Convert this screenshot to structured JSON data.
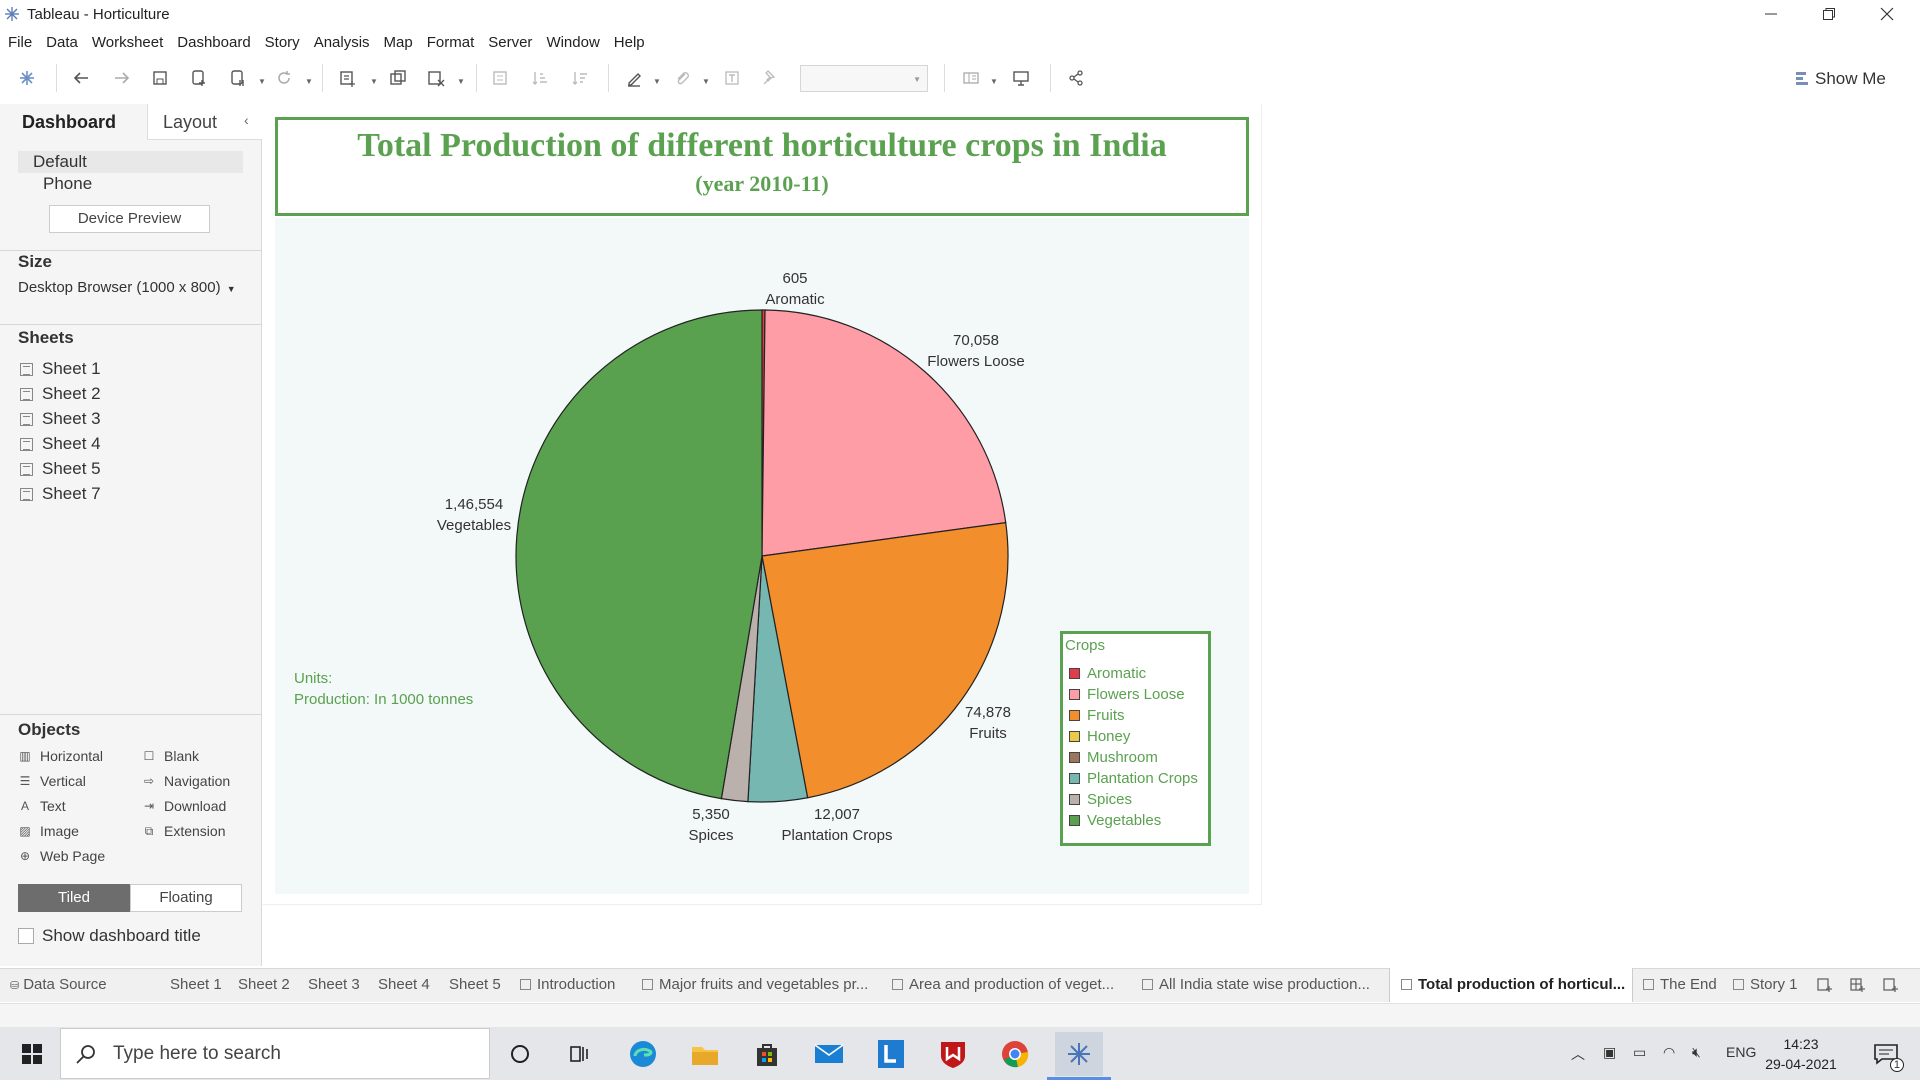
{
  "window": {
    "title": "Tableau - Horticulture"
  },
  "menu": [
    "File",
    "Data",
    "Worksheet",
    "Dashboard",
    "Story",
    "Analysis",
    "Map",
    "Format",
    "Server",
    "Window",
    "Help"
  ],
  "toolbar": {
    "show_me": "Show Me"
  },
  "left_panel": {
    "tabs": {
      "dashboard": "Dashboard",
      "layout": "Layout"
    },
    "devices": {
      "default": "Default",
      "phone": "Phone",
      "preview_button": "Device Preview"
    },
    "size": {
      "heading": "Size",
      "value": "Desktop Browser (1000 x 800)"
    },
    "sheets": {
      "heading": "Sheets",
      "items": [
        "Sheet 1",
        "Sheet 2",
        "Sheet 3",
        "Sheet 4",
        "Sheet 5",
        "Sheet 7"
      ]
    },
    "objects": {
      "heading": "Objects",
      "items": [
        "Horizontal",
        "Blank",
        "Vertical",
        "Navigation",
        "Text",
        "Download",
        "Image",
        "Extension",
        "Web Page"
      ]
    },
    "layout_mode": {
      "tiled": "Tiled",
      "floating": "Floating"
    },
    "show_title": "Show dashboard title"
  },
  "dashboard": {
    "title": "Total Production of different horticulture crops in India",
    "subtitle": "(year 2010-11)",
    "units_line1": "Units:",
    "units_line2": "Production: In 1000 tonnes",
    "legend_title": "Crops"
  },
  "chart_data": {
    "type": "pie",
    "title": "Total Production of different horticulture crops in India",
    "subtitle": "(year 2010-11)",
    "unit": "Production: In 1000 tonnes",
    "legend_title": "Crops",
    "legend_position": "right",
    "categories": [
      "Aromatic",
      "Flowers Loose",
      "Fruits",
      "Plantation Crops",
      "Spices",
      "Vegetables"
    ],
    "values": [
      605,
      70058,
      74878,
      12007,
      5350,
      146554
    ],
    "value_labels": [
      "605",
      "70,058",
      "74,878",
      "12,007",
      "5,350",
      "1,46,554"
    ],
    "colors": [
      "#e03c4a",
      "#ff9da7",
      "#f28e2b",
      "#76b7b2",
      "#bab0ac",
      "#59a14f"
    ],
    "legend": [
      {
        "name": "Aromatic",
        "color": "#e03c4a"
      },
      {
        "name": "Flowers Loose",
        "color": "#ff9da7"
      },
      {
        "name": "Fruits",
        "color": "#f28e2b"
      },
      {
        "name": "Honey",
        "color": "#edc948"
      },
      {
        "name": "Mushroom",
        "color": "#9c755f"
      },
      {
        "name": "Plantation Crops",
        "color": "#76b7b2"
      },
      {
        "name": "Spices",
        "color": "#bab0ac"
      },
      {
        "name": "Vegetables",
        "color": "#59a14f"
      }
    ]
  },
  "sheet_tabs": [
    "Data Source",
    "Sheet 1",
    "Sheet 2",
    "Sheet 3",
    "Sheet 4",
    "Sheet 5",
    "Introduction",
    "Major fruits and vegetables pr...",
    "Area and production of veget...",
    "All India state wise production...",
    "Total production of horticul...",
    "The End",
    "Story 1"
  ],
  "active_sheet_tab": "Total production of horticul...",
  "taskbar": {
    "search_placeholder": "Type here to search",
    "language": "ENG",
    "time": "14:23",
    "date": "29-04-2021",
    "notification_count": "1"
  }
}
